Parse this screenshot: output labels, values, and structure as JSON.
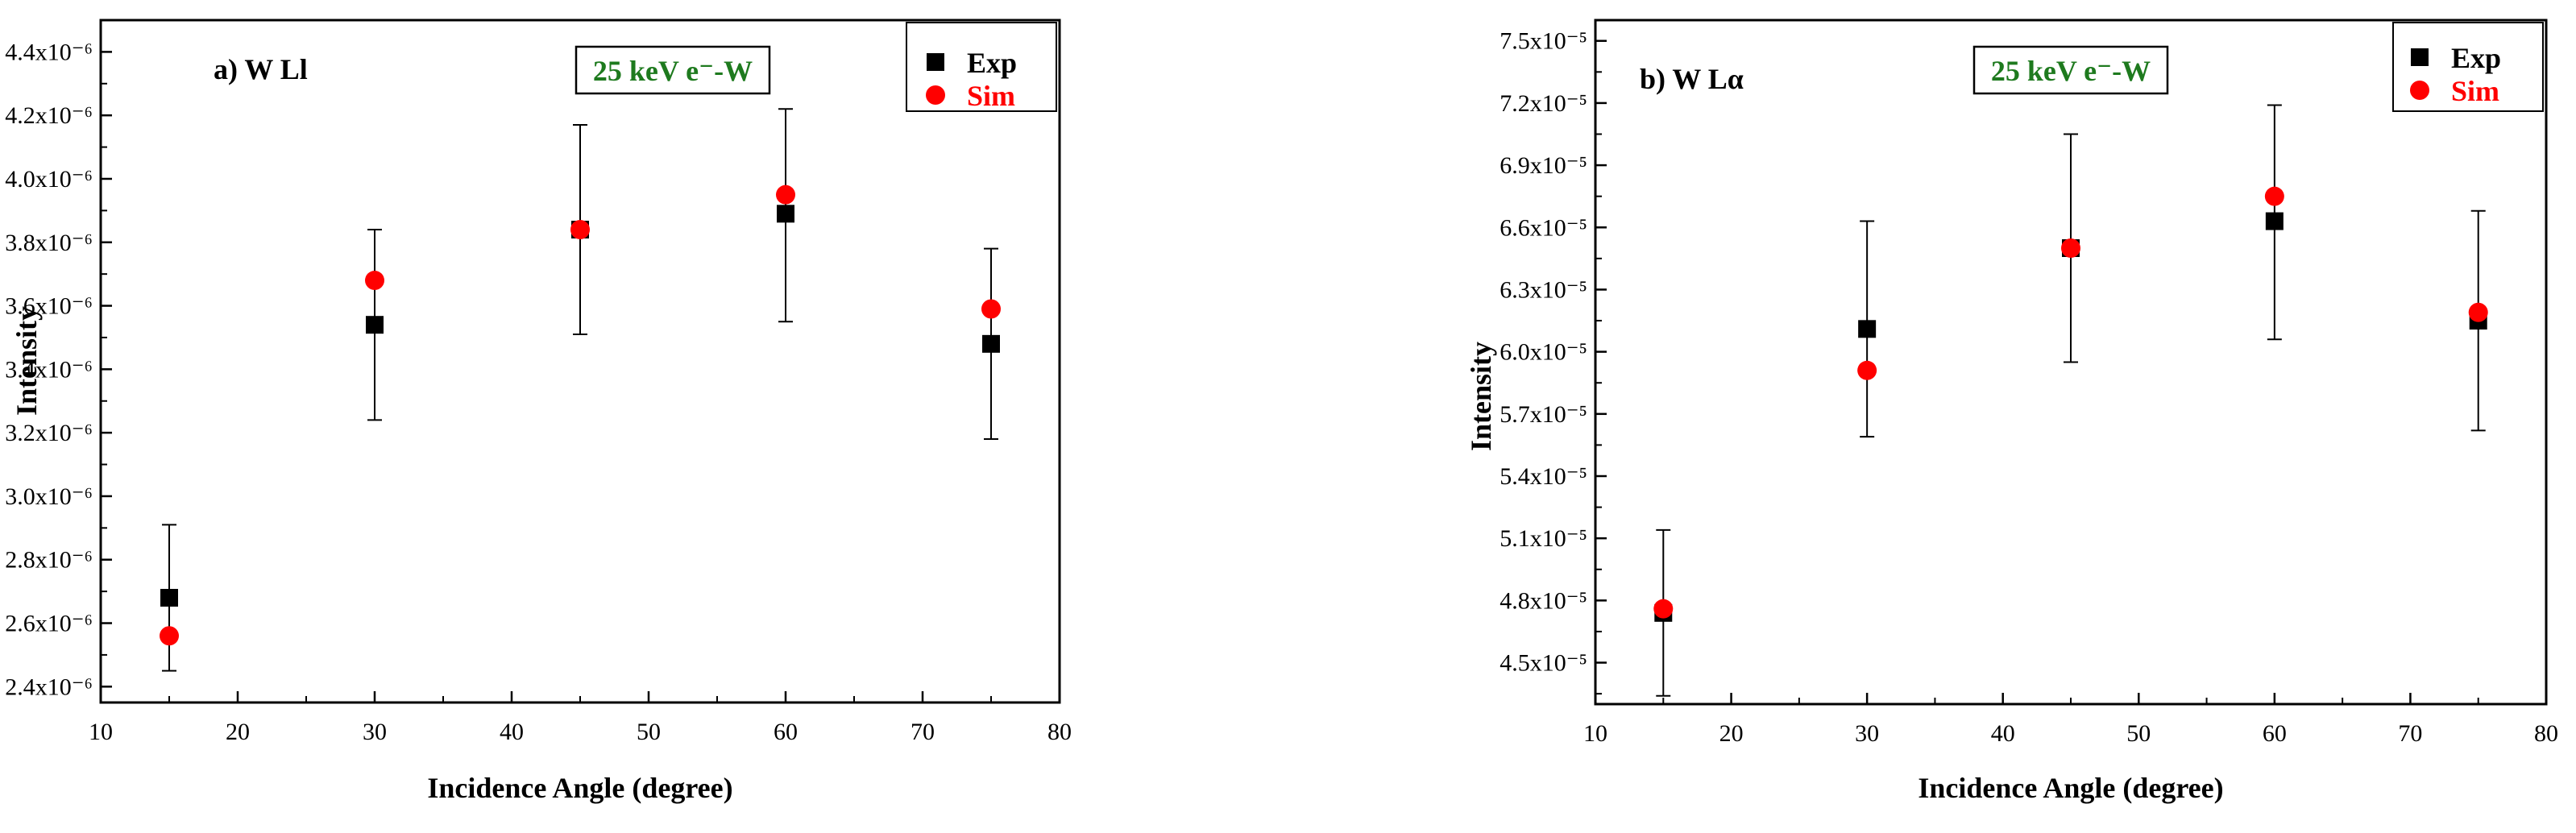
{
  "chart_data": [
    {
      "type": "scatter",
      "panel_label": "a) W Ll",
      "condition_label": "25 keV e⁻-W",
      "xlabel": "Incidence Angle (degree)",
      "ylabel": "Intensity",
      "xlim": [
        10,
        80
      ],
      "ylim": [
        2.35e-06,
        4.5e-06
      ],
      "x_ticks": [
        10,
        20,
        30,
        40,
        50,
        60,
        70,
        80
      ],
      "y_ticks": [
        2.4e-06,
        2.6e-06,
        2.8e-06,
        3e-06,
        3.2e-06,
        3.4e-06,
        3.6e-06,
        3.8e-06,
        4e-06,
        4.2e-06,
        4.4e-06
      ],
      "y_tick_labels": [
        "2.4x10⁻⁶",
        "2.6x10⁻⁶",
        "2.8x10⁻⁶",
        "3.0x10⁻⁶",
        "3.2x10⁻⁶",
        "3.4x10⁻⁶",
        "3.6x10⁻⁶",
        "3.8x10⁻⁶",
        "4.0x10⁻⁶",
        "4.2x10⁻⁶",
        "4.4x10⁻⁶"
      ],
      "legend_position": "top-right",
      "series": [
        {
          "name": "Exp",
          "marker": "square",
          "color": "#000000",
          "x": [
            15,
            30,
            45,
            60,
            75
          ],
          "y": [
            2.68e-06,
            3.54e-06,
            3.84e-06,
            3.89e-06,
            3.48e-06
          ],
          "y_err_low": [
            2.45e-06,
            3.24e-06,
            3.51e-06,
            3.55e-06,
            3.18e-06
          ],
          "y_err_high": [
            2.91e-06,
            3.84e-06,
            4.17e-06,
            4.22e-06,
            3.78e-06
          ]
        },
        {
          "name": "Sim",
          "marker": "circle",
          "color": "#ff0000",
          "x": [
            15,
            30,
            45,
            60,
            75
          ],
          "y": [
            2.56e-06,
            3.68e-06,
            3.84e-06,
            3.95e-06,
            3.59e-06
          ]
        }
      ]
    },
    {
      "type": "scatter",
      "panel_label": "b) W Lα",
      "condition_label": "25 keV e⁻-W",
      "xlabel": "Incidence Angle (degree)",
      "ylabel": "Intensity",
      "xlim": [
        10,
        80
      ],
      "ylim": [
        4.3e-05,
        7.6e-05
      ],
      "x_ticks": [
        10,
        20,
        30,
        40,
        50,
        60,
        70,
        80
      ],
      "y_ticks": [
        4.5e-05,
        4.8e-05,
        5.1e-05,
        5.4e-05,
        5.7e-05,
        6e-05,
        6.3e-05,
        6.6e-05,
        6.9e-05,
        7.2e-05,
        7.5e-05
      ],
      "y_tick_labels": [
        "4.5x10⁻⁵",
        "4.8x10⁻⁵",
        "5.1x10⁻⁵",
        "5.4x10⁻⁵",
        "5.7x10⁻⁵",
        "6.0x10⁻⁵",
        "6.3x10⁻⁵",
        "6.6x10⁻⁵",
        "6.9x10⁻⁵",
        "7.2x10⁻⁵",
        "7.5x10⁻⁵"
      ],
      "legend_position": "top-right",
      "series": [
        {
          "name": "Exp",
          "marker": "square",
          "color": "#000000",
          "x": [
            15,
            30,
            45,
            60,
            75
          ],
          "y": [
            4.74e-05,
            6.11e-05,
            6.5e-05,
            6.63e-05,
            6.15e-05
          ],
          "y_err_low": [
            4.34e-05,
            5.59e-05,
            5.95e-05,
            6.06e-05,
            5.62e-05
          ],
          "y_err_high": [
            5.14e-05,
            6.63e-05,
            7.05e-05,
            7.19e-05,
            6.68e-05
          ]
        },
        {
          "name": "Sim",
          "marker": "circle",
          "color": "#ff0000",
          "x": [
            15,
            30,
            45,
            60,
            75
          ],
          "y": [
            4.76e-05,
            5.91e-05,
            6.5e-05,
            6.75e-05,
            6.19e-05
          ]
        }
      ]
    }
  ]
}
